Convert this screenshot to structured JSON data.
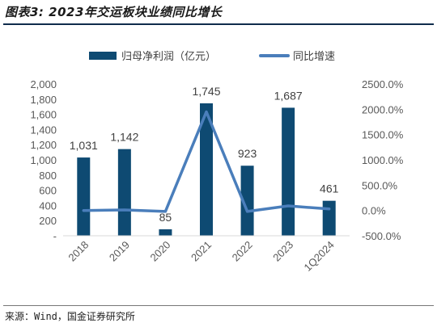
{
  "header": {
    "title": "图表3: 2023年交运板块业绩同比增长"
  },
  "footer": {
    "source": "来源：Wind，国金证券研究所"
  },
  "chart_data": {
    "type": "bar",
    "categories": [
      "2018",
      "2019",
      "2020",
      "2021",
      "2022",
      "2023",
      "1Q2024"
    ],
    "series": [
      {
        "name": "归母净利润（亿元）",
        "type": "bar",
        "axis": "left",
        "values": [
          1031,
          1142,
          85,
          1745,
          923,
          1687,
          461
        ],
        "data_labels": [
          "1,031",
          "1,142",
          "85",
          "1,745",
          "923",
          "1,687",
          "461"
        ],
        "color": "#0e4a72"
      },
      {
        "name": "同比增速",
        "type": "line",
        "axis": "right",
        "values": [
          0,
          10,
          -20,
          1950,
          -20,
          90,
          30
        ],
        "color": "#4a7ebb"
      }
    ],
    "y_left": {
      "ylim": [
        0,
        2000
      ],
      "ticks": [
        0,
        200,
        400,
        600,
        800,
        1000,
        1200,
        1400,
        1600,
        1800,
        2000
      ],
      "tick_labels": [
        "-",
        "200",
        "400",
        "600",
        "800",
        "1,000",
        "1,200",
        "1,400",
        "1,600",
        "1,800",
        "2,000"
      ]
    },
    "y_right": {
      "ylim": [
        -500,
        2500
      ],
      "ticks": [
        -500,
        0,
        500,
        1000,
        1500,
        2000,
        2500
      ],
      "tick_labels": [
        "-500.0%",
        "0.0%",
        "500.0%",
        "1000.0%",
        "1500.0%",
        "2000.0%",
        "2500.0%"
      ]
    },
    "grid": false,
    "legend": "top-center"
  }
}
